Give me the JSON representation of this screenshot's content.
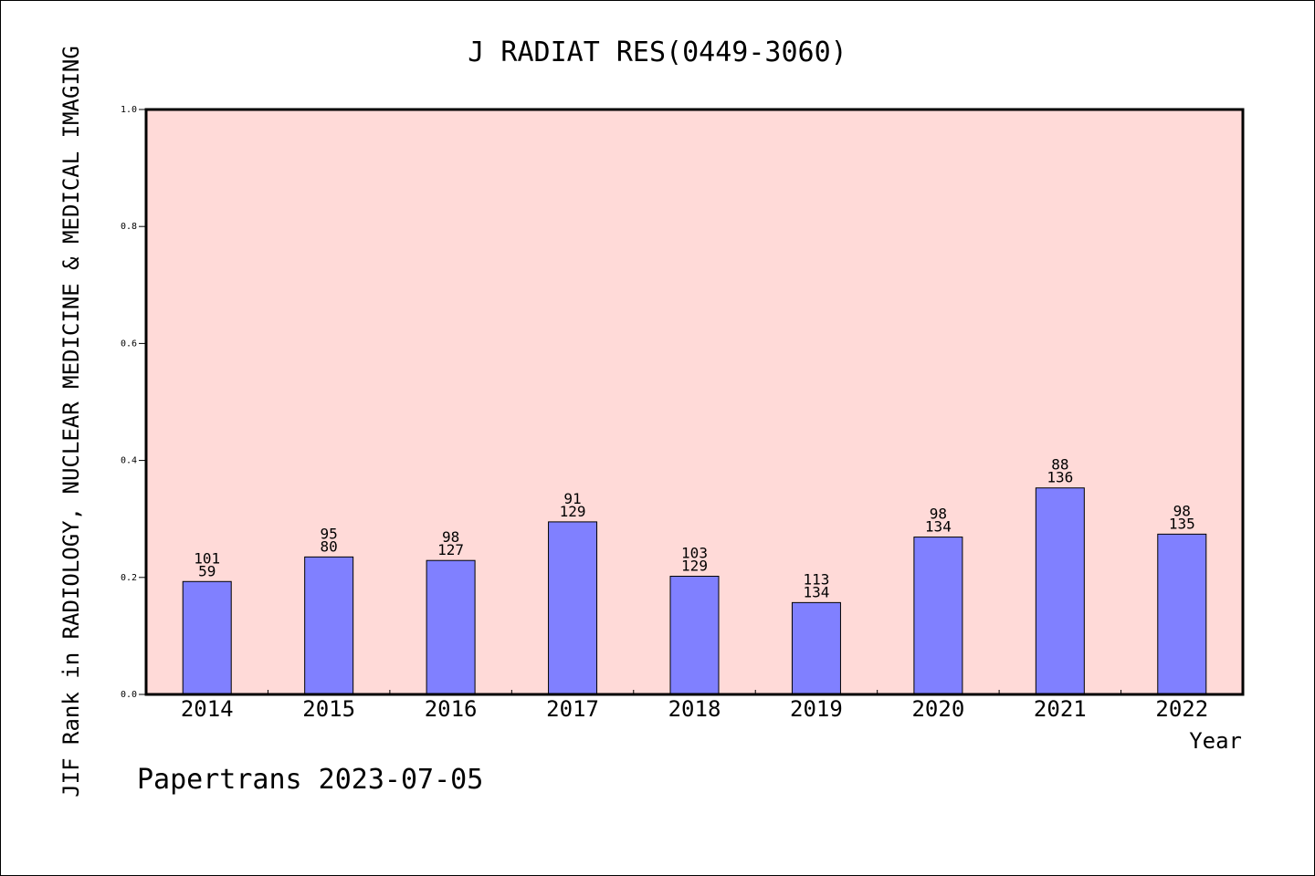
{
  "chart_data": {
    "type": "bar",
    "title": "J RADIAT RES(0449-3060)",
    "xlabel": "Year",
    "ylabel": "JIF Rank in RADIOLOGY, NUCLEAR MEDICINE & MEDICAL IMAGING",
    "footer": "Papertrans 2023-07-05",
    "ylim": [
      0,
      1.0
    ],
    "yticks": [
      "0.0",
      "0.2",
      "0.4",
      "0.6",
      "0.8",
      "1.0"
    ],
    "grid": false,
    "categories": [
      "2014",
      "2015",
      "2016",
      "2017",
      "2018",
      "2019",
      "2020",
      "2021",
      "2022"
    ],
    "values": [
      0.193,
      0.235,
      0.229,
      0.295,
      0.202,
      0.157,
      0.269,
      0.353,
      0.274
    ],
    "rank_labels": [
      "101",
      "95",
      "98",
      "91",
      "103",
      "113",
      "98",
      "88",
      "98"
    ],
    "total_labels": [
      "59",
      "80",
      "127",
      "129",
      "129",
      "134",
      "134",
      "136",
      "135"
    ],
    "colors": {
      "plot_background": "#ffdad8",
      "bar_fill": "#8080ff",
      "bar_stroke": "#000000"
    }
  }
}
